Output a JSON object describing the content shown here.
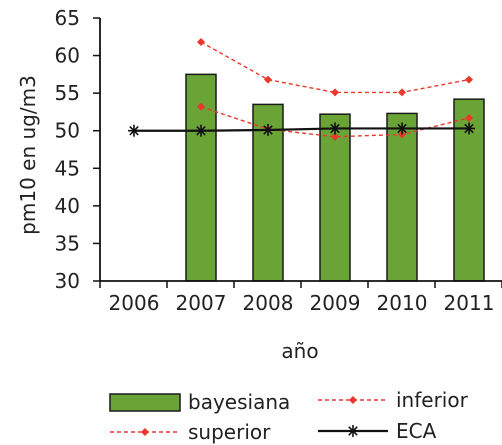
{
  "chart_data": {
    "type": "bar",
    "title": "",
    "xlabel": "año",
    "ylabel": "pm10 en ug/m3",
    "ylim": [
      30,
      65
    ],
    "yticks": [
      30,
      35,
      40,
      45,
      50,
      55,
      60,
      65
    ],
    "categories": [
      "2006",
      "2007",
      "2008",
      "2009",
      "2010",
      "2011"
    ],
    "grid": false,
    "legend_position": "bottom",
    "series": [
      {
        "name": "bayesiana",
        "kind": "bar",
        "color": "#6aa437",
        "values": [
          null,
          57.5,
          53.5,
          52.2,
          52.3,
          54.2
        ]
      },
      {
        "name": "inferior",
        "kind": "line",
        "style": "dashed",
        "color": "#e8392c",
        "values": [
          null,
          53.2,
          50.2,
          49.2,
          49.5,
          51.7
        ]
      },
      {
        "name": "superior",
        "kind": "line",
        "style": "dashed",
        "color": "#e8392c",
        "values": [
          null,
          61.8,
          56.8,
          55.1,
          55.1,
          56.8
        ]
      },
      {
        "name": "ECA",
        "kind": "line",
        "style": "solid",
        "marker": "star",
        "color": "#111111",
        "values": [
          50,
          50,
          50.1,
          50.3,
          50.3,
          50.3
        ]
      }
    ]
  }
}
